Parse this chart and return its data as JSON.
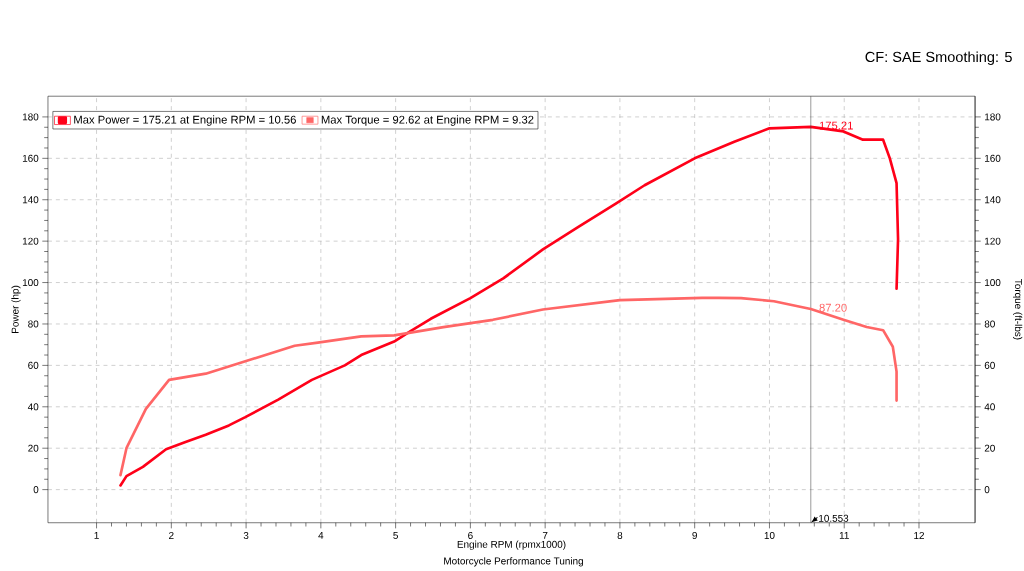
{
  "chart_data": {
    "type": "line",
    "xlabel": "Engine RPM (rpmx1000)",
    "ylabel": "Power (hp)",
    "y2label": "Torque (ft-lbs)",
    "annotations": [
      "CF: SAE Smoothing: 5",
      "Motorcycle Performance Tuning",
      {
        "text": "175.21",
        "x": 10.553,
        "y": 175.21
      },
      {
        "text": "87.20",
        "x": 10.553,
        "y": 87.2
      }
    ],
    "xlim": [
      0.35,
      12.75
    ],
    "xticks": [
      1,
      2,
      3,
      4,
      5,
      6,
      7,
      8,
      9,
      10,
      11,
      12
    ],
    "ylim": [
      -16,
      190
    ],
    "yticks": [
      0,
      20,
      40,
      60,
      80,
      100,
      120,
      140,
      160,
      180
    ],
    "y2lim": [
      -16,
      190
    ],
    "y2ticks": [
      0,
      20,
      40,
      60,
      80,
      100,
      120,
      140,
      160,
      180
    ],
    "grid": true,
    "legend": "top left",
    "marker": "none",
    "line_style": "solid",
    "ref_lines": [
      {
        "axis": "x",
        "value": 10.553,
        "label": "10.553",
        "color": "#404040"
      }
    ],
    "series": [
      {
        "name": "Max Power = 175.21 at Engine RPM = 10.56",
        "color": "#ff0019",
        "x": [
          1.32,
          1.4,
          1.62,
          1.93,
          2.19,
          2.46,
          2.77,
          2.99,
          3.43,
          3.88,
          4.32,
          4.54,
          4.98,
          5.2,
          5.47,
          6.0,
          6.44,
          6.97,
          7.45,
          7.94,
          8.33,
          9.0,
          9.53,
          10.0,
          10.553,
          10.99,
          11.25,
          11.52,
          11.61,
          11.7,
          11.72,
          11.7
        ],
        "values": [
          2,
          6.5,
          11,
          19.5,
          23,
          26.5,
          31,
          35,
          43.5,
          53,
          60,
          65,
          71.5,
          76.5,
          82.5,
          92.5,
          102,
          116,
          127,
          138,
          147,
          160,
          168,
          174.5,
          175.2,
          173,
          169,
          169,
          160,
          148,
          121,
          97
        ]
      },
      {
        "name": "Max Torque = 92.62 at Engine RPM = 9.32",
        "color": "#ff6666",
        "axis": "y2",
        "x": [
          1.32,
          1.4,
          1.66,
          1.97,
          2.46,
          2.99,
          3.65,
          3.96,
          4.54,
          4.98,
          5.64,
          6.3,
          6.97,
          8.0,
          9.1,
          9.32,
          9.62,
          10.06,
          10.553,
          10.99,
          11.3,
          11.52,
          11.65,
          11.7,
          11.7
        ],
        "values": [
          7,
          20,
          39,
          53,
          56,
          62,
          69.5,
          71,
          74,
          74.5,
          78.5,
          82,
          87,
          91.5,
          92.6,
          92.6,
          92.5,
          91,
          87.2,
          82,
          78.5,
          77,
          69,
          57,
          43
        ]
      }
    ]
  }
}
